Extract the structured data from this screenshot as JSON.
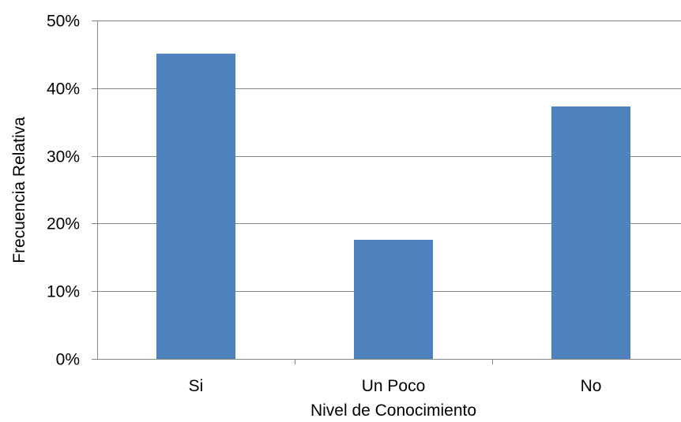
{
  "chart_data": {
    "type": "bar",
    "categories": [
      "Si",
      "Un Poco",
      "No"
    ],
    "values": [
      45.1,
      17.6,
      37.3
    ],
    "value_unit": "%",
    "xlabel": "Nivel de Conocimiento",
    "ylabel": "Frecuencia Relativa",
    "ylim": [
      0,
      50
    ],
    "yticks": [
      "0%",
      "10%",
      "20%",
      "30%",
      "40%",
      "50%"
    ],
    "grid": true,
    "legend": "none",
    "bar_color": "#4F81BD",
    "grid_color": "#868686"
  }
}
